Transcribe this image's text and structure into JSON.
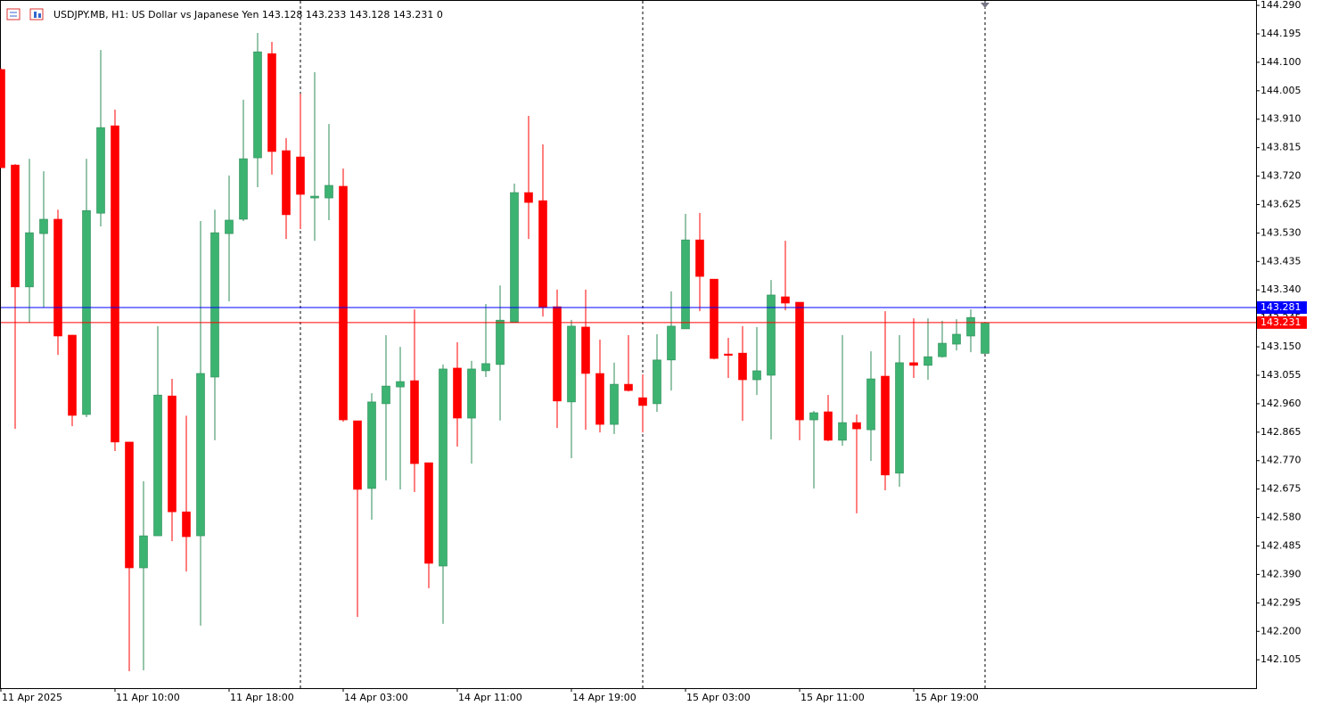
{
  "chart_data": {
    "type": "candlestick",
    "title": "USDJPY.MB, H1:  US Dollar vs Japanese Yen  143.128 143.233 143.128 143.231  0",
    "categories": [
      "11 Apr 2025",
      null,
      null,
      null,
      null,
      null,
      null,
      null,
      "11 Apr 10:00",
      null,
      null,
      null,
      null,
      null,
      null,
      null,
      "11 Apr 18:00",
      null,
      null,
      null,
      null,
      null,
      null,
      null,
      "14 Apr 03:00",
      null,
      null,
      null,
      null,
      null,
      null,
      null,
      "14 Apr 11:00",
      null,
      null,
      null,
      null,
      null,
      null,
      null,
      "14 Apr 19:00",
      null,
      null,
      null,
      null,
      null,
      null,
      null,
      "15 Apr 03:00",
      null,
      null,
      null,
      null,
      null,
      null,
      null,
      "15 Apr 11:00",
      null,
      null,
      null,
      null,
      null,
      null,
      null,
      "15 Apr 19:00",
      null,
      null,
      null,
      null,
      null
    ],
    "open": [
      144.076,
      143.757,
      143.35,
      143.528,
      143.576,
      143.189,
      142.924,
      143.596,
      143.888,
      142.832,
      142.412,
      142.519,
      142.986,
      142.599,
      142.519,
      143.049,
      143.528,
      143.576,
      143.781,
      144.129,
      143.805,
      143.784,
      143.647,
      143.647,
      143.686,
      142.903,
      142.677,
      142.96,
      143.016,
      143.037,
      142.763,
      142.418,
      143.079,
      142.912,
      143.07,
      143.091,
      143.233,
      143.665,
      143.638,
      143.284,
      142.966,
      143.216,
      143.061,
      142.891,
      143.025,
      142.98,
      142.96,
      143.106,
      143.21,
      143.507,
      143.376,
      143.126,
      143.129,
      143.04,
      143.055,
      143.317,
      143.299,
      142.906,
      142.933,
      142.838,
      142.897,
      142.873,
      143.052,
      142.728,
      143.097,
      143.088,
      143.117,
      143.159,
      143.186,
      143.128
    ],
    "high": [
      144.08,
      143.76,
      143.778,
      143.736,
      143.608,
      143.19,
      143.778,
      144.141,
      143.942,
      142.832,
      142.701,
      143.219,
      143.043,
      142.92,
      143.57,
      143.608,
      143.722,
      143.975,
      144.198,
      144.168,
      143.847,
      143.995,
      144.067,
      143.894,
      143.745,
      142.903,
      142.995,
      143.189,
      143.15,
      143.275,
      142.763,
      143.091,
      143.165,
      143.103,
      143.293,
      143.355,
      143.695,
      143.921,
      143.826,
      143.341,
      143.24,
      143.341,
      143.174,
      143.097,
      143.189,
      143.058,
      143.192,
      143.335,
      143.594,
      143.597,
      143.376,
      143.18,
      143.219,
      143.216,
      143.373,
      143.504,
      143.299,
      142.936,
      142.989,
      143.189,
      142.924,
      143.135,
      143.269,
      143.189,
      143.245,
      143.245,
      143.237,
      143.242,
      143.275,
      143.233
    ],
    "low": [
      143.748,
      142.876,
      143.23,
      143.281,
      143.123,
      142.885,
      142.915,
      143.552,
      142.802,
      142.067,
      142.07,
      142.519,
      142.501,
      142.4,
      142.219,
      142.838,
      143.302,
      143.57,
      143.683,
      143.725,
      143.51,
      143.543,
      143.504,
      143.573,
      142.9,
      142.248,
      142.573,
      142.704,
      142.674,
      142.665,
      142.344,
      142.225,
      142.817,
      142.76,
      143.049,
      142.904,
      143.233,
      143.51,
      143.251,
      142.879,
      142.778,
      142.873,
      142.864,
      142.859,
      143.001,
      142.864,
      142.933,
      143.004,
      143.21,
      143.269,
      143.108,
      143.046,
      142.903,
      142.989,
      142.841,
      143.272,
      142.838,
      142.677,
      142.835,
      142.82,
      142.594,
      142.769,
      142.671,
      142.683,
      143.046,
      143.04,
      143.114,
      143.138,
      143.132,
      143.128
    ],
    "close": [
      143.748,
      143.35,
      143.531,
      143.576,
      143.186,
      142.921,
      143.605,
      143.882,
      142.832,
      142.412,
      142.519,
      142.989,
      142.599,
      142.516,
      143.061,
      143.531,
      143.573,
      143.778,
      144.135,
      143.802,
      143.591,
      143.659,
      143.653,
      143.689,
      142.906,
      142.674,
      142.966,
      143.019,
      143.034,
      142.76,
      142.427,
      143.076,
      142.912,
      143.076,
      143.094,
      143.239,
      143.665,
      143.632,
      143.281,
      142.969,
      143.219,
      143.061,
      142.891,
      143.025,
      143.004,
      142.954,
      143.106,
      143.219,
      143.507,
      143.385,
      143.111,
      143.123,
      143.04,
      143.07,
      143.323,
      143.296,
      142.906,
      142.93,
      142.838,
      142.897,
      142.876,
      143.043,
      142.722,
      143.097,
      143.088,
      143.117,
      143.162,
      143.192,
      143.248,
      143.231
    ],
    "up_color": "#3cb371",
    "down_color": "#ff0000",
    "ylim": [
      142.0103,
      144.308
    ],
    "yticks": [
      {
        "value": 144.29,
        "label": "144.290"
      },
      144.195,
      {
        "value": 144.1,
        "label": "144.100"
      },
      144.005,
      {
        "value": 143.91,
        "label": "143.910"
      },
      143.815,
      {
        "value": 143.72,
        "label": "143.720"
      },
      143.625,
      {
        "value": 143.53,
        "label": "143.530"
      },
      143.435,
      {
        "value": 143.34,
        "label": "143.340"
      },
      143.245,
      {
        "value": 143.15,
        "label": "143.150"
      },
      143.055,
      {
        "value": 142.96,
        "label": "142.960"
      },
      142.865,
      {
        "value": 142.77,
        "label": "142.770"
      },
      142.675,
      {
        "value": 142.58,
        "label": "142.580"
      },
      142.485,
      {
        "value": 142.39,
        "label": "142.390"
      },
      142.295,
      {
        "value": 142.2,
        "label": "142.200"
      },
      142.105
    ],
    "price_lines": [
      {
        "value": 143.281,
        "color": "#0000ff"
      },
      {
        "value": 143.231,
        "color": "#ff0000"
      }
    ],
    "grid": false
  }
}
